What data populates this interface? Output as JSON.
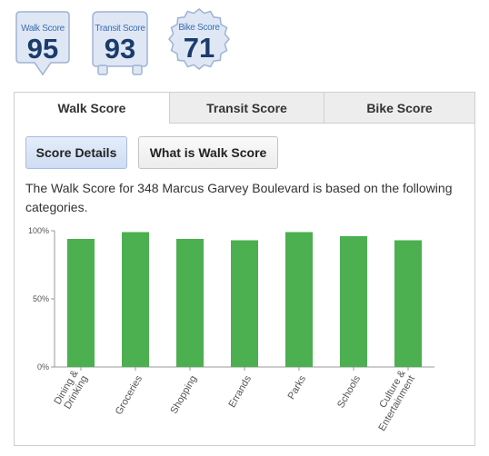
{
  "badges": [
    {
      "label": "Walk Score",
      "value": "95",
      "icon": "walk-score-pin-icon"
    },
    {
      "label": "Transit Score",
      "value": "93",
      "icon": "transit-score-bus-icon"
    },
    {
      "label": "Bike Score",
      "value": "71",
      "icon": "bike-score-gear-icon"
    }
  ],
  "tabs": [
    {
      "label": "Walk Score",
      "active": true
    },
    {
      "label": "Transit Score",
      "active": false
    },
    {
      "label": "Bike Score",
      "active": false
    }
  ],
  "subtabs": [
    {
      "label": "Score Details",
      "active": true
    },
    {
      "label": "What is Walk Score",
      "active": false
    }
  ],
  "description": "The Walk Score for 348 Marcus Garvey Boulevard is based on the following categories.",
  "colors": {
    "bar": "#4caf50",
    "badge_fill": "#dfe7f5",
    "badge_stroke": "#9fb3d3"
  },
  "chart_data": {
    "type": "bar",
    "categories": [
      [
        "Dining &",
        "Drinking"
      ],
      [
        "Groceries"
      ],
      [
        "Shopping"
      ],
      [
        "Errands"
      ],
      [
        "Parks"
      ],
      [
        "Schools"
      ],
      [
        "Culture &",
        "Entertainment"
      ]
    ],
    "values": [
      94,
      99,
      94,
      93,
      99,
      96,
      93
    ],
    "yticks": [
      "0%",
      "50%",
      "100%"
    ],
    "ylim": [
      0,
      100
    ],
    "grid": false
  }
}
